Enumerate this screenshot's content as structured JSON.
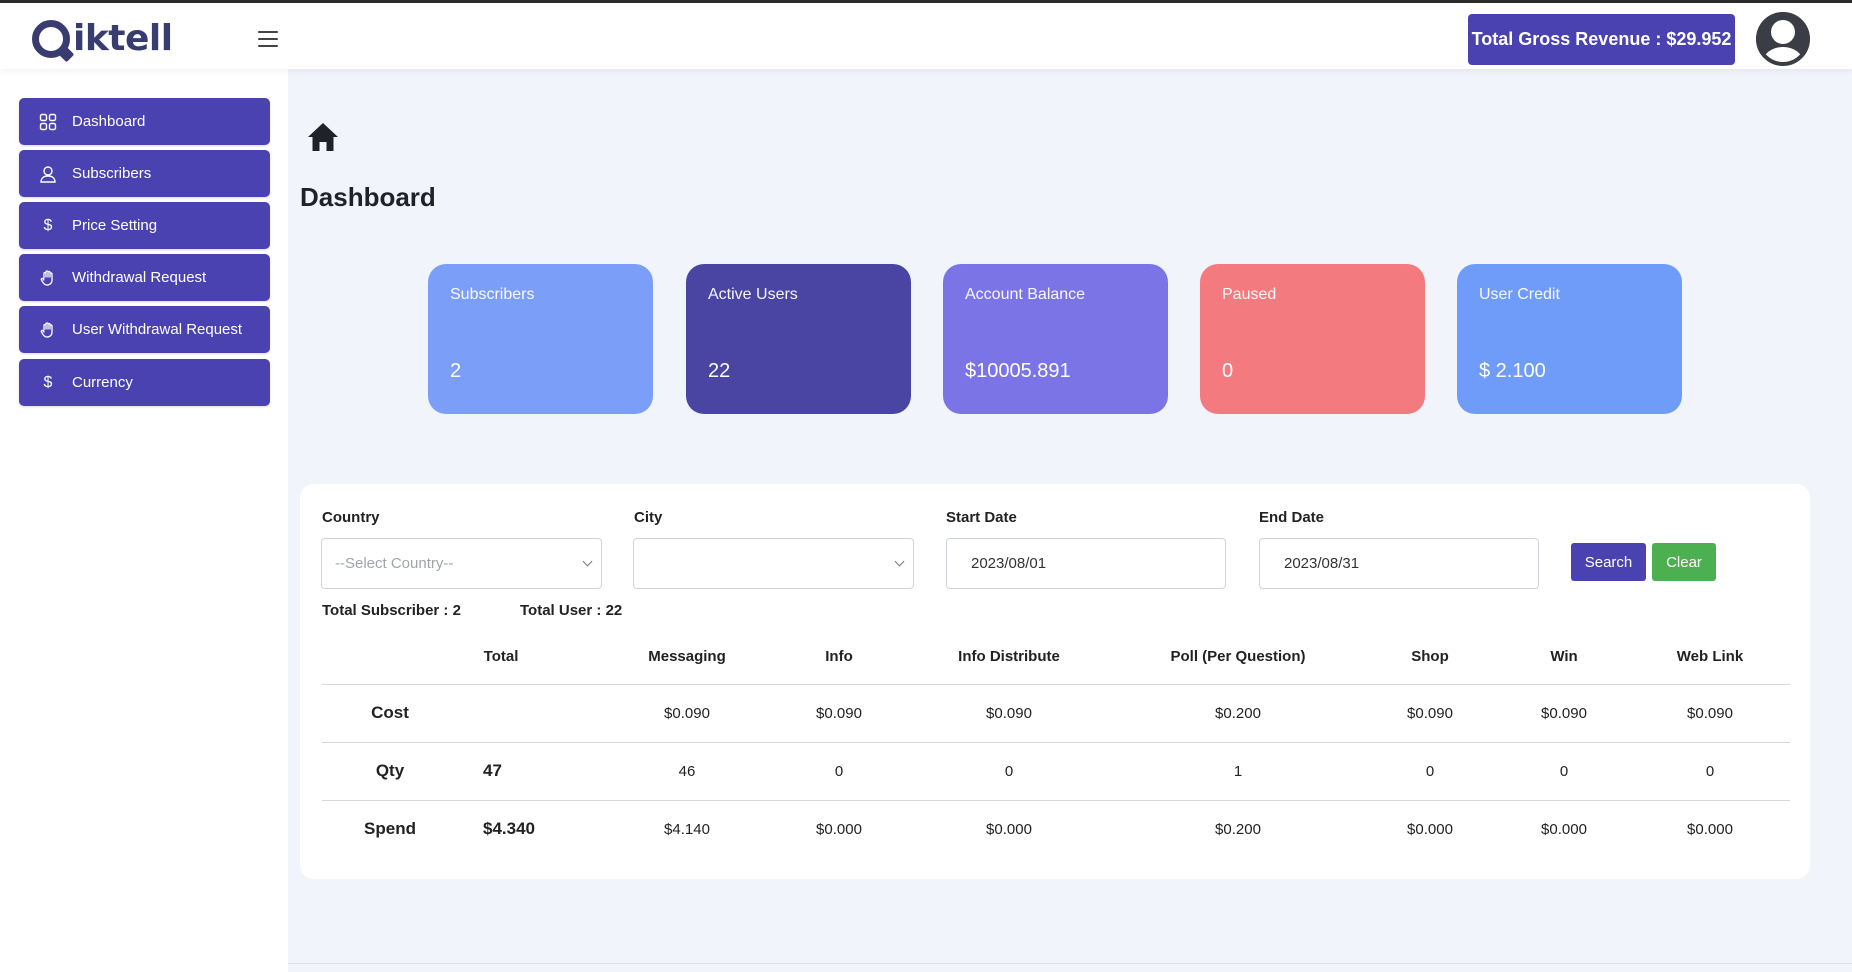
{
  "header": {
    "logo_text": "iktell",
    "revenue_label": "Total Gross Revenue : $29.952",
    "icons": {
      "menu": "hamburger-icon",
      "user": "user-avatar-icon"
    }
  },
  "sidebar": {
    "items": [
      {
        "label": "Dashboard",
        "icon": "grid-icon"
      },
      {
        "label": "Subscribers",
        "icon": "user-icon"
      },
      {
        "label": "Price Setting",
        "icon": "dollar-icon"
      },
      {
        "label": "Withdrawal Request",
        "icon": "hand-icon"
      },
      {
        "label": "User Withdrawal Request",
        "icon": "hand-icon"
      },
      {
        "label": "Currency",
        "icon": "dollar-icon"
      }
    ]
  },
  "page": {
    "title": "Dashboard",
    "home_icon": "home-icon"
  },
  "cards": [
    {
      "label": "Subscribers",
      "value": "2",
      "color": "#7b9ef8"
    },
    {
      "label": "Active Users",
      "value": "22",
      "color": "#4a44a3"
    },
    {
      "label": "Account Balance",
      "value": "$10005.891",
      "color": "#7b74e6"
    },
    {
      "label": "Paused",
      "value": "0",
      "color": "#f37a7e"
    },
    {
      "label": "User Credit",
      "value": "$ 2.100",
      "color": "#6f9cf8"
    }
  ],
  "filters": {
    "country": {
      "label": "Country",
      "placeholder": "--Select Country--"
    },
    "city": {
      "label": "City",
      "value": ""
    },
    "start_date": {
      "label": "Start Date",
      "value": "2023/08/01"
    },
    "end_date": {
      "label": "End Date",
      "value": "2023/08/31"
    },
    "search_label": "Search",
    "clear_label": "Clear"
  },
  "totals": {
    "subscriber": "Total Subscriber : 2",
    "user": "Total User : 22"
  },
  "table": {
    "headers": [
      "Total",
      "Messaging",
      "Info",
      "Info Distribute",
      "Poll (Per Question)",
      "Shop",
      "Win",
      "Web Link"
    ],
    "rows": [
      {
        "label": "Cost",
        "total": "",
        "values": [
          "$0.090",
          "$0.090",
          "$0.090",
          "$0.200",
          "$0.090",
          "$0.090",
          "$0.090"
        ]
      },
      {
        "label": "Qty",
        "total": "47",
        "values": [
          "46",
          "0",
          "0",
          "1",
          "0",
          "0",
          "0"
        ]
      },
      {
        "label": "Spend",
        "total": "$4.340",
        "values": [
          "$4.140",
          "$0.000",
          "$0.000",
          "$0.200",
          "$0.000",
          "$0.000",
          "$0.000"
        ]
      }
    ]
  },
  "colors": {
    "primary": "#4a42b0",
    "success": "#4caf50",
    "background": "#f1f4fb"
  }
}
